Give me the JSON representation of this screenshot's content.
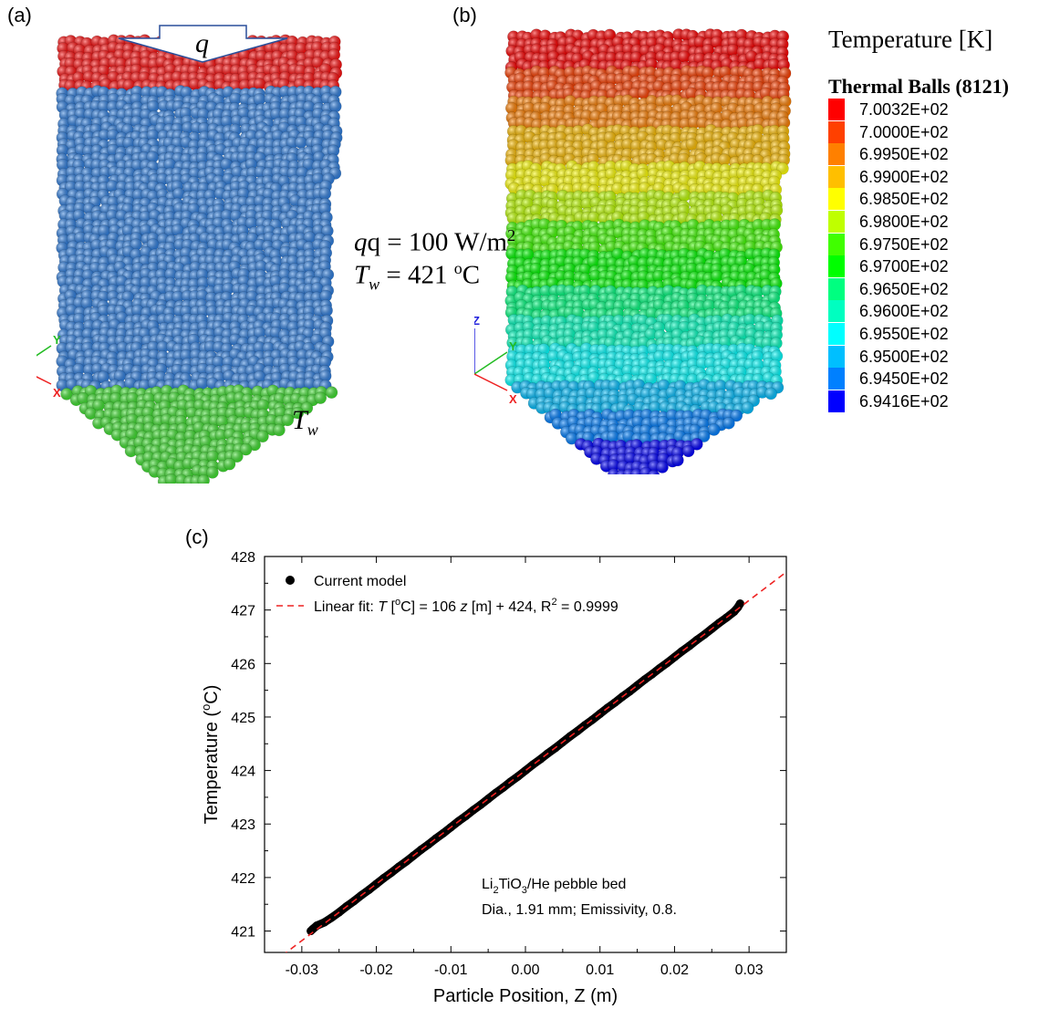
{
  "panels": {
    "a": {
      "label": "(a)",
      "flux_symbol": "q",
      "wall_label": "T",
      "wall_sub": "w"
    },
    "b": {
      "label": "(b)"
    },
    "c": {
      "label": "(c)"
    }
  },
  "boundary_conditions": {
    "q_text": "q = 100 W/m",
    "q_sup": "2",
    "tw_main": "T",
    "tw_sub": "w",
    "tw_value": " = 421 ",
    "tw_unit_sup": "o",
    "tw_unit": "C"
  },
  "axes_triad": {
    "z": "Z",
    "y": "Y",
    "x": "X",
    "colors": {
      "z": "#2222dd",
      "y": "#22bb22",
      "x": "#ee2222"
    }
  },
  "legend": {
    "title": "Temperature [K]",
    "subtitle": "Thermal Balls (8121)",
    "levels": [
      {
        "label": "7.0032E+02",
        "color": "#ff0000"
      },
      {
        "label": "7.0000E+02",
        "color": "#ff4000"
      },
      {
        "label": "6.9950E+02",
        "color": "#ff8000"
      },
      {
        "label": "6.9900E+02",
        "color": "#ffbf00"
      },
      {
        "label": "6.9850E+02",
        "color": "#ffff00"
      },
      {
        "label": "6.9800E+02",
        "color": "#bfff00"
      },
      {
        "label": "6.9750E+02",
        "color": "#40ff00"
      },
      {
        "label": "6.9700E+02",
        "color": "#00ff00"
      },
      {
        "label": "6.9650E+02",
        "color": "#00ff80"
      },
      {
        "label": "6.9600E+02",
        "color": "#00ffc0"
      },
      {
        "label": "6.9550E+02",
        "color": "#00ffff"
      },
      {
        "label": "6.9500E+02",
        "color": "#00bfff"
      },
      {
        "label": "6.9450E+02",
        "color": "#0080ff"
      },
      {
        "label": "6.9416E+02",
        "color": "#0000ff"
      }
    ]
  },
  "colors": {
    "pebble_hot": "#ff1010",
    "pebble_bulk": "#2f7fe0",
    "pebble_wall": "#3fe030"
  },
  "chart_data": {
    "type": "scatter",
    "xlabel": "Particle Position, Z (m)",
    "ylabel_prefix": "Temperature (",
    "ylabel_sup": "o",
    "ylabel_suffix": "C)",
    "xlim": [
      -0.035,
      0.035
    ],
    "ylim": [
      420.6,
      428
    ],
    "xticks": [
      -0.03,
      -0.02,
      -0.01,
      0.0,
      0.01,
      0.02,
      0.03
    ],
    "xtick_labels": [
      "-0.03",
      "-0.02",
      "-0.01",
      "0.00",
      "0.01",
      "0.02",
      "0.03"
    ],
    "yticks": [
      421,
      422,
      423,
      424,
      425,
      426,
      427,
      428
    ],
    "series": [
      {
        "name": "Current model",
        "kind": "points",
        "color": "#000000",
        "x": [
          -0.0288,
          -0.0285,
          -0.028,
          -0.027,
          -0.026,
          -0.025,
          -0.024,
          -0.023,
          -0.022,
          -0.021,
          -0.02,
          -0.019,
          -0.018,
          -0.017,
          -0.016,
          -0.015,
          -0.014,
          -0.013,
          -0.012,
          -0.011,
          -0.01,
          -0.009,
          -0.008,
          -0.007,
          -0.006,
          -0.005,
          -0.004,
          -0.003,
          -0.002,
          -0.001,
          0.0,
          0.001,
          0.002,
          0.003,
          0.004,
          0.005,
          0.006,
          0.007,
          0.008,
          0.009,
          0.01,
          0.011,
          0.012,
          0.013,
          0.014,
          0.015,
          0.016,
          0.017,
          0.018,
          0.019,
          0.02,
          0.021,
          0.022,
          0.023,
          0.024,
          0.025,
          0.026,
          0.027,
          0.028,
          0.0285,
          0.0288
        ],
        "y": [
          421.0,
          421.04,
          421.1,
          421.16,
          421.25,
          421.35,
          421.46,
          421.56,
          421.67,
          421.77,
          421.88,
          421.99,
          422.09,
          422.2,
          422.3,
          422.41,
          422.52,
          422.62,
          422.73,
          422.83,
          422.94,
          423.05,
          423.15,
          423.26,
          423.36,
          423.47,
          423.58,
          423.68,
          423.79,
          423.89,
          424.0,
          424.11,
          424.21,
          424.32,
          424.42,
          424.53,
          424.64,
          424.74,
          424.85,
          424.95,
          425.06,
          425.17,
          425.27,
          425.38,
          425.48,
          425.59,
          425.7,
          425.8,
          425.91,
          426.01,
          426.12,
          426.23,
          426.33,
          426.44,
          426.54,
          426.65,
          426.76,
          426.86,
          426.97,
          427.05,
          427.12
        ]
      },
      {
        "name_prefix": "Linear fit: ",
        "name_var": "T",
        "name_mid1": " [",
        "name_sup1": "o",
        "name_mid2": "C] = 106 ",
        "name_var2": "z",
        "name_mid3": " [m] + 424, R",
        "name_sup2": "2",
        "name_suffix": " = 0.9999",
        "kind": "dashed-line",
        "color": "#ee2222",
        "slope": 106,
        "intercept": 424
      }
    ],
    "legend_entries": [
      "Current model",
      "Linear fit"
    ],
    "annotation": {
      "line1_pre": "Li",
      "line1_sub1": "2",
      "line1_mid": "TiO",
      "line1_sub2": "3",
      "line1_post": "/He pebble bed",
      "line2": "Dia., 1.91 mm; Emissivity, 0.8."
    }
  }
}
